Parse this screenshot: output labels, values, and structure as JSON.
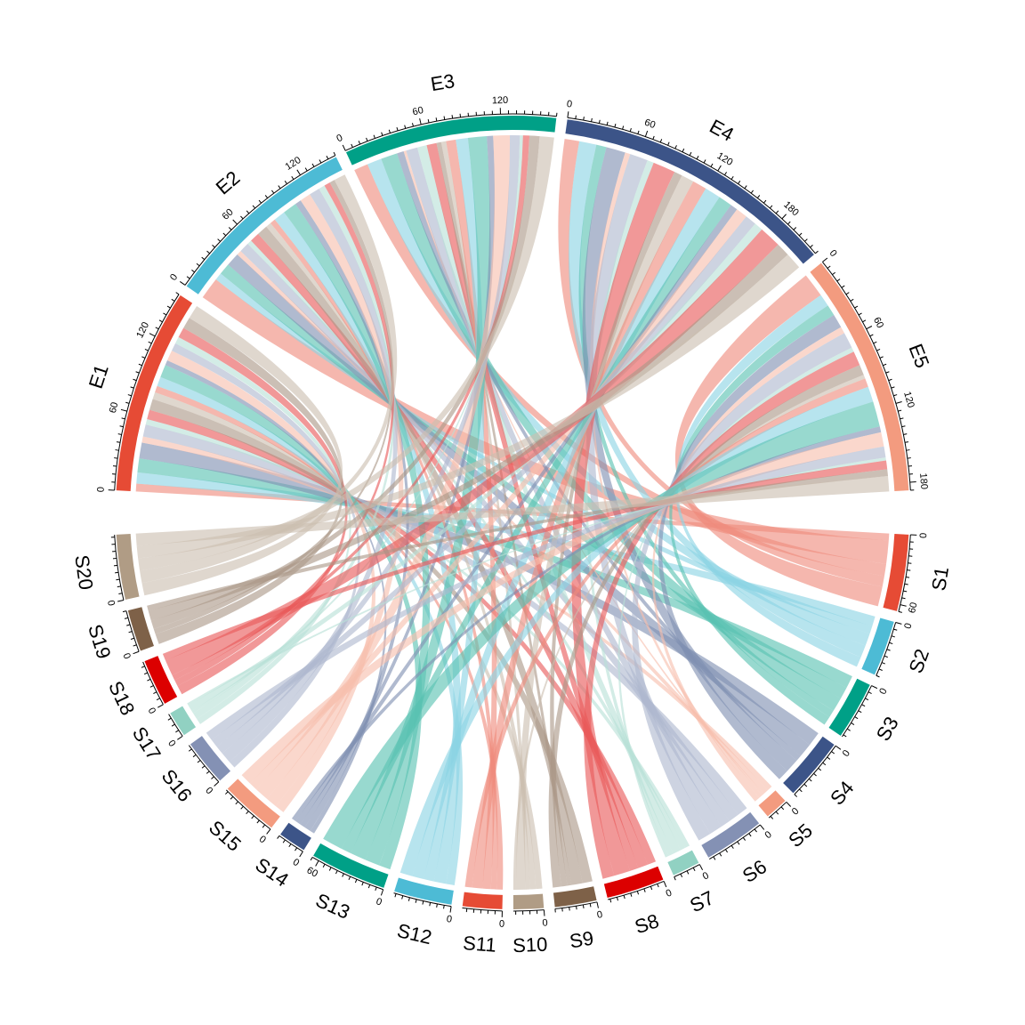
{
  "chart_data": {
    "type": "chord",
    "sectors": [
      {
        "name": "E1",
        "group": "top",
        "total": 156,
        "color": "#E64B35",
        "ticks": [
          0,
          60,
          120
        ]
      },
      {
        "name": "E2",
        "group": "top",
        "total": 150,
        "color": "#4DBBD5",
        "ticks": [
          0,
          60,
          120
        ]
      },
      {
        "name": "E3",
        "group": "top",
        "total": 162,
        "color": "#00A087",
        "ticks": [
          0,
          60,
          120
        ]
      },
      {
        "name": "E4",
        "group": "top",
        "total": 216,
        "color": "#3C5488",
        "ticks": [
          0,
          60,
          120,
          180
        ]
      },
      {
        "name": "E5",
        "group": "top",
        "total": 186,
        "color": "#F39B7F",
        "ticks": [
          0,
          60,
          120,
          180
        ]
      },
      {
        "name": "S1",
        "group": "bottom",
        "total": 66,
        "color": "#E64B35",
        "ticks": [
          0,
          60
        ]
      },
      {
        "name": "S2",
        "group": "bottom",
        "total": 48,
        "color": "#4DBBD5",
        "ticks": [
          0
        ]
      },
      {
        "name": "S3",
        "group": "bottom",
        "total": 50,
        "color": "#00A087",
        "ticks": [
          0
        ]
      },
      {
        "name": "S4",
        "group": "bottom",
        "total": 54,
        "color": "#3C5488",
        "ticks": [
          0
        ]
      },
      {
        "name": "S5",
        "group": "bottom",
        "total": 20,
        "color": "#F39B7F",
        "ticks": [
          0
        ]
      },
      {
        "name": "S6",
        "group": "bottom",
        "total": 52,
        "color": "#8491B4",
        "ticks": [
          0
        ]
      },
      {
        "name": "S7",
        "group": "bottom",
        "total": 24,
        "color": "#91D1C2",
        "ticks": [
          0
        ]
      },
      {
        "name": "S8",
        "group": "bottom",
        "total": 50,
        "color": "#DC0000",
        "ticks": [
          0
        ]
      },
      {
        "name": "S9",
        "group": "bottom",
        "total": 36,
        "color": "#7E6148",
        "ticks": [
          0
        ]
      },
      {
        "name": "S10",
        "group": "bottom",
        "total": 26,
        "color": "#B09C85",
        "ticks": [
          0
        ]
      },
      {
        "name": "S11",
        "group": "bottom",
        "total": 34,
        "color": "#E64B35",
        "ticks": [
          0
        ]
      },
      {
        "name": "S12",
        "group": "bottom",
        "total": 50,
        "color": "#4DBBD5",
        "ticks": [
          0
        ]
      },
      {
        "name": "S13",
        "group": "bottom",
        "total": 66,
        "color": "#00A087",
        "ticks": [
          0,
          60
        ]
      },
      {
        "name": "S14",
        "group": "bottom",
        "total": 24,
        "color": "#3C5488",
        "ticks": [
          0
        ]
      },
      {
        "name": "S15",
        "group": "bottom",
        "total": 50,
        "color": "#F39B7F",
        "ticks": [
          0
        ]
      },
      {
        "name": "S16",
        "group": "bottom",
        "total": 40,
        "color": "#8491B4",
        "ticks": [
          0
        ]
      },
      {
        "name": "S17",
        "group": "bottom",
        "total": 22,
        "color": "#91D1C2",
        "ticks": [
          0
        ]
      },
      {
        "name": "S18",
        "group": "bottom",
        "total": 40,
        "color": "#DC0000",
        "ticks": [
          0
        ]
      },
      {
        "name": "S19",
        "group": "bottom",
        "total": 36,
        "color": "#7E6148",
        "ticks": [
          0
        ]
      },
      {
        "name": "S20",
        "group": "bottom",
        "total": 56,
        "color": "#B09C85",
        "ticks": [
          0
        ]
      }
    ],
    "grid_on": false,
    "legend": "none"
  }
}
